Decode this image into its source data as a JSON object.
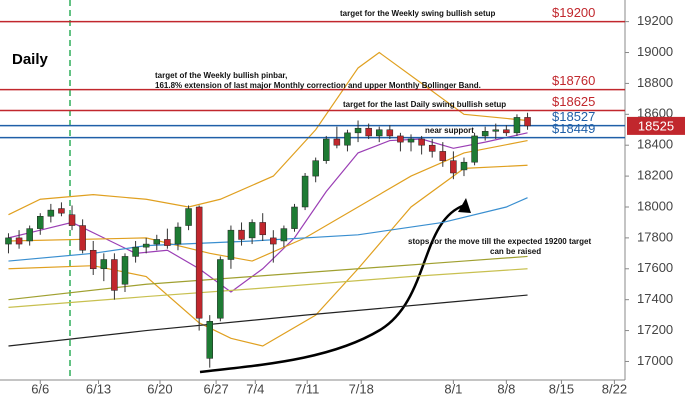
{
  "chart_data": {
    "type": "candlestick",
    "x": [
      -3,
      -2,
      -1,
      0,
      1,
      2,
      3,
      4,
      5,
      6,
      7,
      8,
      9,
      10,
      11,
      12,
      13,
      14,
      15,
      16,
      17,
      18,
      19,
      20,
      21,
      22,
      23,
      24,
      25,
      26,
      27,
      28,
      29,
      30,
      31,
      32,
      33,
      34,
      35,
      36,
      37,
      38,
      39,
      40,
      41,
      42,
      43,
      44,
      45,
      46
    ],
    "open": [
      17760,
      17800,
      17780,
      17860,
      17940,
      17990,
      17950,
      17880,
      17720,
      17600,
      17660,
      17500,
      17680,
      17740,
      17760,
      17790,
      17760,
      17880,
      18000,
      17020,
      17280,
      17660,
      17850,
      17800,
      17900,
      17800,
      17780,
      17860,
      18000,
      18200,
      18300,
      18440,
      18400,
      18480,
      18510,
      18460,
      18500,
      18460,
      18420,
      18440,
      18400,
      18360,
      18300,
      18240,
      18290,
      18460,
      18490,
      18500,
      18480,
      18580
    ],
    "high": [
      17830,
      17850,
      17880,
      17960,
      18020,
      18030,
      18010,
      17920,
      17780,
      17700,
      17700,
      17700,
      17780,
      17800,
      17820,
      17860,
      17900,
      18010,
      18010,
      17300,
      17680,
      17880,
      17900,
      17920,
      17960,
      17850,
      17880,
      18020,
      18220,
      18320,
      18460,
      18520,
      18500,
      18560,
      18540,
      18520,
      18530,
      18480,
      18470,
      18460,
      18440,
      18420,
      18360,
      18320,
      18480,
      18520,
      18540,
      18530,
      18600,
      18610
    ],
    "low": [
      17700,
      17730,
      17750,
      17820,
      17900,
      17940,
      17850,
      17700,
      17560,
      17520,
      17400,
      17450,
      17640,
      17700,
      17720,
      17730,
      17720,
      17850,
      17200,
      16960,
      17260,
      17600,
      17750,
      17760,
      17780,
      17640,
      17740,
      17840,
      17980,
      18160,
      18280,
      18380,
      18360,
      18420,
      18440,
      18420,
      18440,
      18360,
      18360,
      18340,
      18320,
      18260,
      18180,
      18200,
      18270,
      18430,
      18440,
      18460,
      18460,
      18500
    ],
    "close": [
      17800,
      17760,
      17860,
      17940,
      17980,
      17960,
      17880,
      17720,
      17600,
      17660,
      17460,
      17680,
      17740,
      17760,
      17790,
      17750,
      17870,
      17990,
      17280,
      17260,
      17660,
      17850,
      17790,
      17900,
      17820,
      17760,
      17860,
      18000,
      18200,
      18300,
      18440,
      18400,
      18480,
      18510,
      18460,
      18500,
      18460,
      18420,
      18440,
      18400,
      18360,
      18300,
      18220,
      18290,
      18460,
      18490,
      18500,
      18480,
      18580,
      18525
    ],
    "up_color": "#1e7b34",
    "down_color": "#c1272d",
    "lines": [
      {
        "color": "#9b3fb5",
        "x": [
          -3,
          0,
          3,
          6,
          9,
          12,
          15,
          18,
          21,
          24,
          27,
          30,
          33,
          36,
          39,
          42,
          46
        ],
        "values": [
          17800,
          17850,
          17900,
          17800,
          17700,
          17720,
          17600,
          17450,
          17600,
          17800,
          18100,
          18350,
          18430,
          18440,
          18380,
          18420,
          18480
        ]
      },
      {
        "color": "#e0a020",
        "x": [
          -3,
          0,
          5,
          10,
          14,
          17,
          22,
          26,
          30,
          32,
          36,
          40,
          46
        ],
        "values": [
          17950,
          18050,
          18080,
          18050,
          18000,
          18050,
          18200,
          18500,
          18900,
          19000,
          18800,
          18600,
          18560
        ]
      },
      {
        "color": "#e0a020",
        "x": [
          -3,
          5,
          10,
          15,
          18,
          21,
          26,
          30,
          35,
          40,
          46
        ],
        "values": [
          17600,
          17620,
          17550,
          17250,
          17150,
          17100,
          17300,
          17600,
          18000,
          18250,
          18270
        ]
      },
      {
        "color": "#e0a020",
        "x": [
          -3,
          10,
          16,
          20,
          25,
          30,
          35,
          40,
          46
        ],
        "values": [
          17780,
          17800,
          17700,
          17650,
          17800,
          18000,
          18200,
          18350,
          18430
        ]
      },
      {
        "color": "#3a8fd0",
        "x": [
          -3,
          5,
          10,
          20,
          30,
          38,
          44,
          46
        ],
        "values": [
          17650,
          17700,
          17750,
          17780,
          17820,
          17900,
          18000,
          18060
        ]
      },
      {
        "color": "#a0a030",
        "x": [
          -3,
          10,
          20,
          30,
          40,
          46
        ],
        "values": [
          17400,
          17500,
          17550,
          17600,
          17650,
          17680
        ]
      },
      {
        "color": "#c8c050",
        "x": [
          -3,
          10,
          20,
          35,
          46
        ],
        "values": [
          17350,
          17420,
          17470,
          17550,
          17600
        ]
      },
      {
        "color": "#222222",
        "x": [
          -3,
          10,
          25,
          38,
          46
        ],
        "values": [
          17100,
          17200,
          17300,
          17380,
          17430
        ]
      }
    ],
    "levels": [
      {
        "value": 19200,
        "label": "$19200",
        "color": "#c1272d"
      },
      {
        "value": 18760,
        "label": "$18760",
        "color": "#c1272d"
      },
      {
        "value": 18625,
        "label": "$18625",
        "color": "#c1272d"
      },
      {
        "value": 18527,
        "label": "$18527",
        "color": "#1f5fa8"
      },
      {
        "value": 18449,
        "label": "$18449",
        "color": "#1f5fa8"
      }
    ],
    "annotations": [
      "Daily",
      "target for the Weekly swing bullish setup",
      "target of the Weekly bullish pinbar,",
      "161.8% extension of last major Monthly correction and upper Monthly Bollinger Band.",
      "target for the last Daily swing bullish setup",
      "near support",
      "stops for the move till the expected 19200 target",
      "can be raised"
    ],
    "xlim": [
      -3.8,
      55.2
    ],
    "xticks": [
      {
        "value": 0,
        "label": "6/6"
      },
      {
        "value": 5.5,
        "label": "6/13"
      },
      {
        "value": 11.3,
        "label": "6/20"
      },
      {
        "value": 16.6,
        "label": "6/27"
      },
      {
        "value": 20.3,
        "label": "7/4"
      },
      {
        "value": 25.2,
        "label": "7/11"
      },
      {
        "value": 30.3,
        "label": "7/18"
      },
      {
        "value": 39,
        "label": "8/1"
      },
      {
        "value": 44,
        "label": "8/8"
      },
      {
        "value": 49.2,
        "label": "8/15"
      },
      {
        "value": 54.2,
        "label": "8/22"
      }
    ],
    "ylim": [
      16880,
      19340
    ],
    "yticks": [
      17000,
      17200,
      17400,
      17600,
      17800,
      18000,
      18200,
      18400,
      18600,
      18800,
      19000,
      19200
    ]
  }
}
